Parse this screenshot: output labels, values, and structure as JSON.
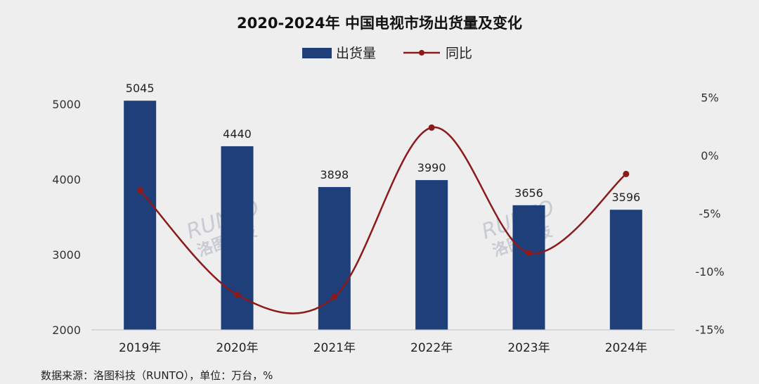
{
  "chart_data": {
    "type": "bar",
    "title": "2020-2024年 中国电视市场出货量及变化",
    "categories": [
      "2019年",
      "2020年",
      "2021年",
      "2022年",
      "2023年",
      "2024年"
    ],
    "series": [
      {
        "name": "出货量",
        "type": "bar",
        "axis": "left",
        "color": "#1f3f7a",
        "values": [
          5045,
          4440,
          3898,
          3990,
          3656,
          3596
        ]
      },
      {
        "name": "同比",
        "type": "line",
        "axis": "right",
        "color": "#8b1a1a",
        "values": [
          -3.0,
          -12.0,
          -12.2,
          2.4,
          -8.4,
          -1.6
        ]
      }
    ],
    "data_labels": [
      "5045",
      "4440",
      "3898",
      "3990",
      "3656",
      "3596"
    ],
    "y_left": {
      "ylim": [
        2000,
        5400
      ],
      "ticks": [
        "2000",
        "3000",
        "4000",
        "5000"
      ]
    },
    "y_right": {
      "ylim": [
        -15,
        5
      ],
      "ticks": [
        "5%",
        "0%",
        "-5%",
        "-10%",
        "-15%"
      ]
    },
    "legend_placement": "top-center",
    "grid": false,
    "source": "数据来源：洛图科技（RUNTO），单位：万台，%",
    "watermark": {
      "text": "RUNTO",
      "sub": "洛图科技"
    }
  }
}
